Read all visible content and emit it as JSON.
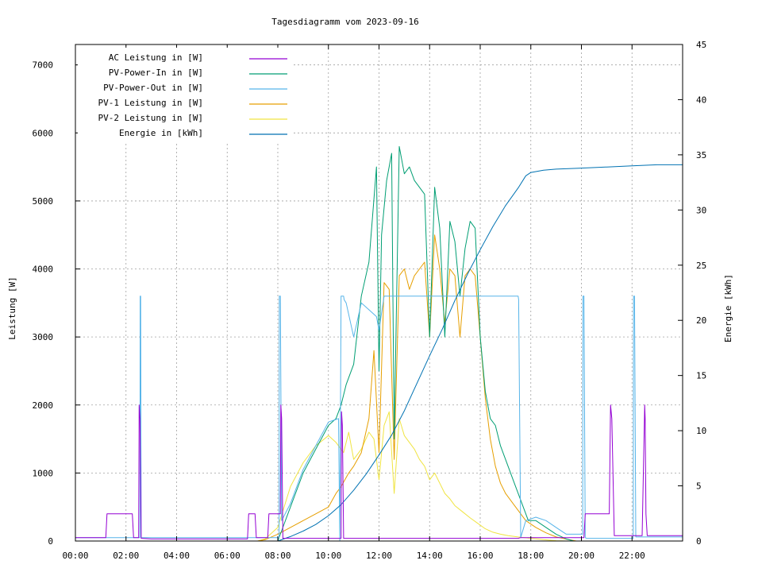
{
  "chart_data": {
    "type": "line",
    "title": "Tagesdiagramm vom 2023-09-16",
    "xlabel": "",
    "ylabel": "Leistung [W]",
    "y2label": "Energie [kWh]",
    "xlim": [
      0,
      24
    ],
    "ylim": [
      0,
      7300
    ],
    "y2lim": [
      0,
      45
    ],
    "x_ticks": [
      {
        "v": 0,
        "label": "00:00"
      },
      {
        "v": 2,
        "label": "02:00"
      },
      {
        "v": 4,
        "label": "04:00"
      },
      {
        "v": 6,
        "label": "06:00"
      },
      {
        "v": 8,
        "label": "08:00"
      },
      {
        "v": 10,
        "label": "10:00"
      },
      {
        "v": 12,
        "label": "12:00"
      },
      {
        "v": 14,
        "label": "14:00"
      },
      {
        "v": 16,
        "label": "16:00"
      },
      {
        "v": 18,
        "label": "18:00"
      },
      {
        "v": 20,
        "label": "20:00"
      },
      {
        "v": 22,
        "label": "22:00"
      }
    ],
    "y_ticks": [
      {
        "v": 0,
        "label": "0"
      },
      {
        "v": 1000,
        "label": "1000"
      },
      {
        "v": 2000,
        "label": "2000"
      },
      {
        "v": 3000,
        "label": "3000"
      },
      {
        "v": 4000,
        "label": "4000"
      },
      {
        "v": 5000,
        "label": "5000"
      },
      {
        "v": 6000,
        "label": "6000"
      },
      {
        "v": 7000,
        "label": "7000"
      }
    ],
    "y2_ticks": [
      {
        "v": 0,
        "label": "0"
      },
      {
        "v": 5,
        "label": "5"
      },
      {
        "v": 10,
        "label": "10"
      },
      {
        "v": 15,
        "label": "15"
      },
      {
        "v": 20,
        "label": "20"
      },
      {
        "v": 25,
        "label": "25"
      },
      {
        "v": 30,
        "label": "30"
      },
      {
        "v": 35,
        "label": "35"
      },
      {
        "v": 40,
        "label": "40"
      },
      {
        "v": 45,
        "label": "45"
      }
    ],
    "grid": true,
    "legend_position": "top-left",
    "series": [
      {
        "name": "AC Leistung in [W]",
        "color": "#9400d3",
        "axis": "y",
        "x": [
          0,
          1.2,
          1.25,
          2.25,
          2.3,
          2.5,
          2.52,
          2.55,
          2.6,
          3,
          6.8,
          6.85,
          7.1,
          7.15,
          7.6,
          7.65,
          8.1,
          8.12,
          8.15,
          8.2,
          10.5,
          10.52,
          10.55,
          10.6,
          17.5,
          17.6,
          20.1,
          20.15,
          21.1,
          21.15,
          21.2,
          21.3,
          22.4,
          22.5,
          22.52,
          22.55,
          22.6,
          24
        ],
        "y": [
          50,
          50,
          400,
          400,
          50,
          50,
          2000,
          1800,
          40,
          30,
          30,
          400,
          400,
          50,
          50,
          400,
          400,
          2000,
          1800,
          40,
          40,
          1900,
          1700,
          40,
          40,
          50,
          50,
          400,
          400,
          2000,
          1800,
          80,
          80,
          2000,
          1800,
          400,
          80,
          80
        ]
      },
      {
        "name": "PV-Power-In in [W]",
        "color": "#009e73",
        "axis": "y",
        "x": [
          0,
          8.0,
          8.5,
          9.0,
          9.5,
          10.0,
          10.3,
          10.5,
          10.7,
          11.0,
          11.3,
          11.6,
          11.9,
          12.0,
          12.1,
          12.3,
          12.5,
          12.6,
          12.8,
          13.0,
          13.2,
          13.4,
          13.6,
          13.8,
          14.0,
          14.2,
          14.4,
          14.6,
          14.8,
          15.0,
          15.2,
          15.4,
          15.6,
          15.8,
          16.0,
          16.2,
          16.4,
          16.6,
          16.8,
          17.0,
          17.3,
          17.6,
          17.9,
          18.2,
          18.6,
          19.0,
          19.4,
          19.7,
          20.0,
          24
        ],
        "y": [
          0,
          0,
          500,
          1000,
          1350,
          1700,
          1800,
          2000,
          2300,
          2600,
          3600,
          4100,
          5500,
          2500,
          4500,
          5300,
          5700,
          1500,
          5800,
          5400,
          5500,
          5300,
          5200,
          5100,
          3000,
          5200,
          4600,
          3000,
          4700,
          4400,
          3600,
          4300,
          4700,
          4600,
          3000,
          2200,
          1800,
          1700,
          1400,
          1200,
          900,
          600,
          300,
          300,
          200,
          100,
          30,
          0,
          0,
          0
        ]
      },
      {
        "name": "PV-Power-Out in [W]",
        "color": "#56b4e9",
        "axis": "y",
        "x": [
          0,
          2.55,
          2.56,
          2.58,
          2.6,
          8.05,
          8.06,
          8.1,
          8.15,
          8.5,
          9.0,
          9.5,
          10.0,
          10.4,
          10.45,
          10.5,
          10.55,
          10.6,
          10.62,
          10.7,
          11.0,
          11.3,
          11.6,
          11.9,
          12.0,
          12.2,
          12.6,
          13.0,
          14.0,
          15.0,
          16.0,
          16.5,
          17.0,
          17.4,
          17.5,
          17.52,
          17.6,
          17.8,
          18.2,
          18.6,
          19.0,
          19.4,
          20.05,
          20.06,
          20.1,
          20.15,
          20.2,
          22.0,
          22.05,
          22.06,
          22.1,
          22.15,
          22.2,
          24
        ],
        "y": [
          50,
          50,
          3600,
          3600,
          50,
          50,
          3600,
          3600,
          300,
          550,
          1050,
          1400,
          1750,
          1800,
          0,
          3600,
          3600,
          3600,
          3550,
          3500,
          3000,
          3500,
          3400,
          3300,
          3100,
          3600,
          3600,
          3600,
          3600,
          3600,
          3600,
          3600,
          3600,
          3600,
          3600,
          3550,
          50,
          300,
          350,
          300,
          200,
          100,
          100,
          3600,
          3600,
          50,
          40,
          40,
          40,
          3600,
          3600,
          60,
          60,
          60
        ]
      },
      {
        "name": "PV-1 Leistung in [W]",
        "color": "#e69f00",
        "axis": "y",
        "x": [
          0,
          7.2,
          7.5,
          8.0,
          8.5,
          9.0,
          9.5,
          10.0,
          10.3,
          10.5,
          10.8,
          11.0,
          11.3,
          11.6,
          11.8,
          12.0,
          12.2,
          12.4,
          12.6,
          12.8,
          13.0,
          13.2,
          13.4,
          13.6,
          13.8,
          14.0,
          14.2,
          14.4,
          14.6,
          14.8,
          15.0,
          15.2,
          15.4,
          15.6,
          15.8,
          16.0,
          16.2,
          16.4,
          16.6,
          16.8,
          17.0,
          17.4,
          17.8,
          18.2,
          18.6,
          19.0,
          19.5,
          19.8,
          24
        ],
        "y": [
          0,
          0,
          20,
          100,
          200,
          300,
          400,
          500,
          700,
          800,
          1000,
          1100,
          1300,
          1800,
          2800,
          1300,
          3800,
          3700,
          1200,
          3900,
          4000,
          3700,
          3900,
          4000,
          4100,
          3000,
          4500,
          4000,
          3200,
          4000,
          3900,
          3000,
          3900,
          4000,
          3900,
          3000,
          2100,
          1500,
          1100,
          850,
          700,
          500,
          300,
          200,
          120,
          60,
          20,
          0,
          0
        ]
      },
      {
        "name": "PV-2 Leistung in [W]",
        "color": "#f0e442",
        "axis": "y",
        "x": [
          0,
          7.2,
          7.5,
          8.0,
          8.5,
          9.0,
          9.5,
          10.0,
          10.3,
          10.6,
          10.8,
          11.0,
          11.3,
          11.6,
          11.8,
          12.0,
          12.2,
          12.4,
          12.6,
          12.8,
          13.0,
          13.2,
          13.4,
          13.6,
          13.8,
          14.0,
          14.2,
          14.4,
          14.6,
          14.8,
          15.0,
          15.3,
          15.6,
          15.9,
          16.2,
          16.5,
          16.8,
          17.1,
          17.5,
          18.0,
          18.5,
          19.0,
          19.5,
          24
        ],
        "y": [
          0,
          0,
          30,
          200,
          800,
          1150,
          1400,
          1550,
          1450,
          1300,
          1600,
          1200,
          1350,
          1600,
          1500,
          900,
          1700,
          1900,
          700,
          1800,
          1550,
          1450,
          1350,
          1200,
          1100,
          900,
          1000,
          850,
          700,
          620,
          520,
          430,
          340,
          260,
          180,
          130,
          100,
          80,
          60,
          40,
          20,
          5,
          0,
          0
        ]
      },
      {
        "name": "Energie in [kWh]",
        "color": "#0072b2",
        "axis": "y2",
        "x": [
          0,
          8.0,
          8.5,
          9.0,
          9.5,
          10.0,
          10.5,
          11.0,
          11.5,
          12.0,
          12.5,
          13.0,
          13.5,
          14.0,
          14.5,
          15.0,
          15.5,
          16.0,
          16.5,
          17.0,
          17.5,
          17.8,
          18.0,
          18.5,
          19.0,
          20.0,
          21.0,
          22.0,
          23.0,
          24
        ],
        "y": [
          0,
          0,
          0.4,
          0.9,
          1.5,
          2.3,
          3.3,
          4.6,
          6.1,
          7.8,
          9.6,
          11.8,
          14.3,
          16.8,
          19.2,
          21.8,
          24.2,
          26.4,
          28.5,
          30.4,
          32.0,
          33.1,
          33.4,
          33.6,
          33.7,
          33.8,
          33.9,
          34.0,
          34.1,
          34.1
        ]
      }
    ]
  }
}
